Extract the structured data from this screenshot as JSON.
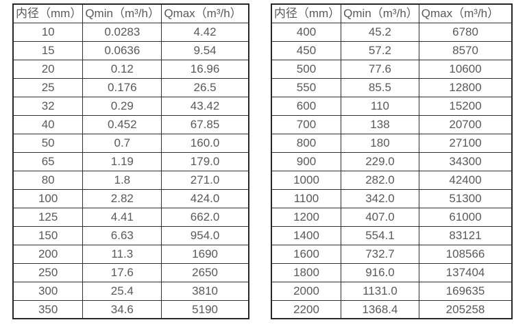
{
  "colors": {
    "background": "#ffffff",
    "border": "#262626",
    "text": "#595959"
  },
  "tables": [
    {
      "name": "flow-spec-table-small-diameters",
      "headers": [
        "内径（mm）",
        "Qmin（m³/h）",
        "Qmax（m³/h）"
      ],
      "rows": [
        [
          "10",
          "0.0283",
          "4.42"
        ],
        [
          "15",
          "0.0636",
          "9.54"
        ],
        [
          "20",
          "0.12",
          "16.96"
        ],
        [
          "25",
          "0.176",
          "26.5"
        ],
        [
          "32",
          "0.29",
          "43.42"
        ],
        [
          "40",
          "0.452",
          "67.85"
        ],
        [
          "50",
          "0.7",
          "160.0"
        ],
        [
          "65",
          "1.19",
          "179.0"
        ],
        [
          "80",
          "1.8",
          "271.0"
        ],
        [
          "100",
          "2.82",
          "424.0"
        ],
        [
          "125",
          "4.41",
          "662.0"
        ],
        [
          "150",
          "6.63",
          "954.0"
        ],
        [
          "200",
          "11.3",
          "1690"
        ],
        [
          "250",
          "17.6",
          "2650"
        ],
        [
          "300",
          "25.4",
          "3810"
        ],
        [
          "350",
          "34.6",
          "5190"
        ]
      ]
    },
    {
      "name": "flow-spec-table-large-diameters",
      "headers": [
        "内径（mm）",
        "Qmin（m³/h）",
        "Qmax（m³/h）"
      ],
      "rows": [
        [
          "400",
          "45.2",
          "6780"
        ],
        [
          "450",
          "57.2",
          "8570"
        ],
        [
          "500",
          "77.6",
          "10600"
        ],
        [
          "550",
          "85.5",
          "12800"
        ],
        [
          "600",
          "110",
          "15200"
        ],
        [
          "700",
          "138",
          "20700"
        ],
        [
          "800",
          "180",
          "27100"
        ],
        [
          "900",
          "229.0",
          "34300"
        ],
        [
          "1000",
          "282.0",
          "42400"
        ],
        [
          "1100",
          "342.0",
          "51300"
        ],
        [
          "1200",
          "407.0",
          "61000"
        ],
        [
          "1400",
          "554.1",
          "83121"
        ],
        [
          "1600",
          "732.7",
          "108566"
        ],
        [
          "1800",
          "916.0",
          "137404"
        ],
        [
          "2000",
          "1131.0",
          "169635"
        ],
        [
          "2200",
          "1368.4",
          "205258"
        ]
      ]
    }
  ]
}
